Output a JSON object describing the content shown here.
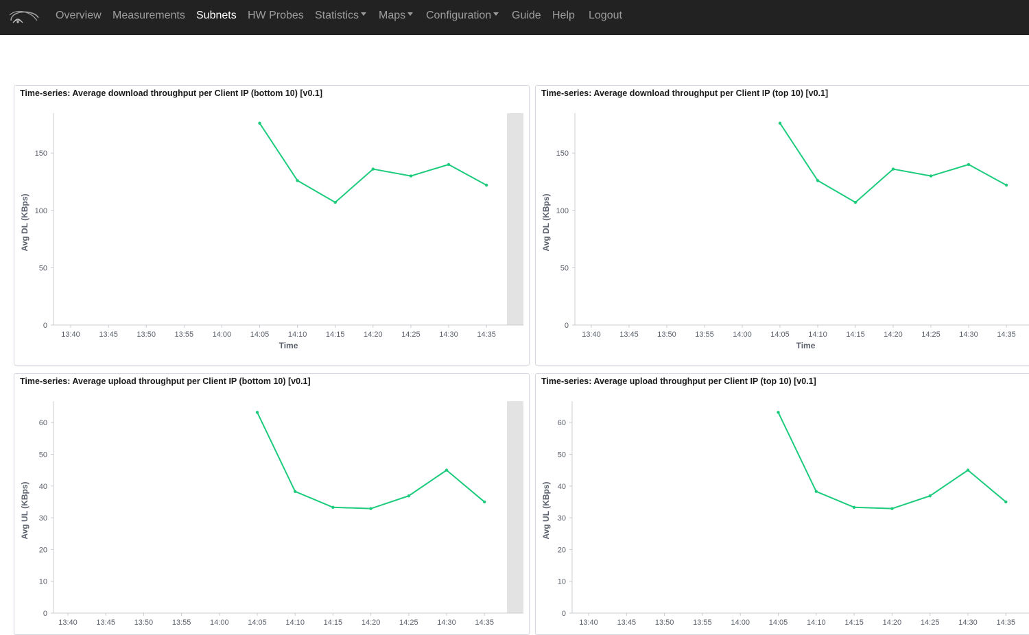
{
  "nav": {
    "items": [
      {
        "label": "Overview",
        "active": false,
        "dropdown": false
      },
      {
        "label": "Measurements",
        "active": false,
        "dropdown": false
      },
      {
        "label": "Subnets",
        "active": true,
        "dropdown": false
      },
      {
        "label": "HW Probes",
        "active": false,
        "dropdown": false
      },
      {
        "label": "Statistics",
        "active": false,
        "dropdown": true
      },
      {
        "label": "Maps",
        "active": false,
        "dropdown": true
      },
      {
        "label": "Configuration",
        "active": false,
        "dropdown": true
      },
      {
        "label": "Guide",
        "active": false,
        "dropdown": false
      },
      {
        "label": "Help",
        "active": false,
        "dropdown": false
      },
      {
        "label": "Logout",
        "active": false,
        "dropdown": false
      }
    ],
    "logo_icon": "wifi-signal-logo-icon"
  },
  "colors": {
    "navbar_bg": "#222222",
    "nav_text": "#9d9d9d",
    "nav_active": "#ffffff",
    "series_line": "#1ccc7c",
    "shade": "#e3e3e3"
  },
  "panels": [
    {
      "title": "Time-series: Average download throughput per Client IP (bottom 10) [v0.1]",
      "shaded_right": true
    },
    {
      "title": "Time-series: Average download throughput per Client IP (top 10) [v0.1]",
      "shaded_right": false
    },
    {
      "title": "Time-series: Average upload throughput per Client IP (bottom 10) [v0.1]",
      "shaded_right": true
    },
    {
      "title": "Time-series: Average upload throughput per Client IP (top 10) [v0.1]",
      "shaded_right": false
    }
  ],
  "chart_data": [
    {
      "type": "line",
      "xlabel": "Time",
      "ylabel": "Avg DL (KBps)",
      "x_ticks": [
        "13:40",
        "13:45",
        "13:50",
        "13:55",
        "14:00",
        "14:05",
        "14:10",
        "14:15",
        "14:20",
        "14:25",
        "14:30",
        "14:35"
      ],
      "y_ticks": [
        0,
        50,
        100,
        150
      ],
      "ylim": [
        0,
        180
      ],
      "series": [
        {
          "x": [
            "14:05",
            "14:10",
            "14:15",
            "14:20",
            "14:25",
            "14:30",
            "14:35"
          ],
          "values": [
            176,
            126,
            107,
            136,
            130,
            140,
            122
          ]
        }
      ]
    },
    {
      "type": "line",
      "xlabel": "Time",
      "ylabel": "Avg DL (KBps)",
      "x_ticks": [
        "13:40",
        "13:45",
        "13:50",
        "13:55",
        "14:00",
        "14:05",
        "14:10",
        "14:15",
        "14:20",
        "14:25",
        "14:30",
        "14:35"
      ],
      "y_ticks": [
        0,
        50,
        100,
        150
      ],
      "ylim": [
        0,
        180
      ],
      "series": [
        {
          "x": [
            "14:05",
            "14:10",
            "14:15",
            "14:20",
            "14:25",
            "14:30",
            "14:35"
          ],
          "values": [
            176,
            126,
            107,
            136,
            130,
            140,
            122
          ]
        }
      ]
    },
    {
      "type": "line",
      "xlabel": "",
      "ylabel": "Avg UL (KBps)",
      "x_ticks": [
        "13:40",
        "13:45",
        "13:50",
        "13:55",
        "14:00",
        "14:05",
        "14:10",
        "14:15",
        "14:20",
        "14:25",
        "14:30",
        "14:35"
      ],
      "y_ticks": [
        0,
        10,
        20,
        30,
        40,
        50,
        60
      ],
      "ylim": [
        0,
        65
      ],
      "series": [
        {
          "x": [
            "14:05",
            "14:10",
            "14:15",
            "14:20",
            "14:25",
            "14:30",
            "14:35"
          ],
          "values": [
            63.2,
            38.3,
            33.3,
            32.9,
            36.9,
            45.0,
            35.0
          ]
        }
      ]
    },
    {
      "type": "line",
      "xlabel": "",
      "ylabel": "Avg UL (KBps)",
      "x_ticks": [
        "13:40",
        "13:45",
        "13:50",
        "13:55",
        "14:00",
        "14:05",
        "14:10",
        "14:15",
        "14:20",
        "14:25",
        "14:30",
        "14:35"
      ],
      "y_ticks": [
        0,
        10,
        20,
        30,
        40,
        50,
        60
      ],
      "ylim": [
        0,
        65
      ],
      "series": [
        {
          "x": [
            "14:05",
            "14:10",
            "14:15",
            "14:20",
            "14:25",
            "14:30",
            "14:35"
          ],
          "values": [
            63.2,
            38.3,
            33.3,
            32.9,
            36.9,
            45.0,
            35.0
          ]
        }
      ]
    }
  ]
}
